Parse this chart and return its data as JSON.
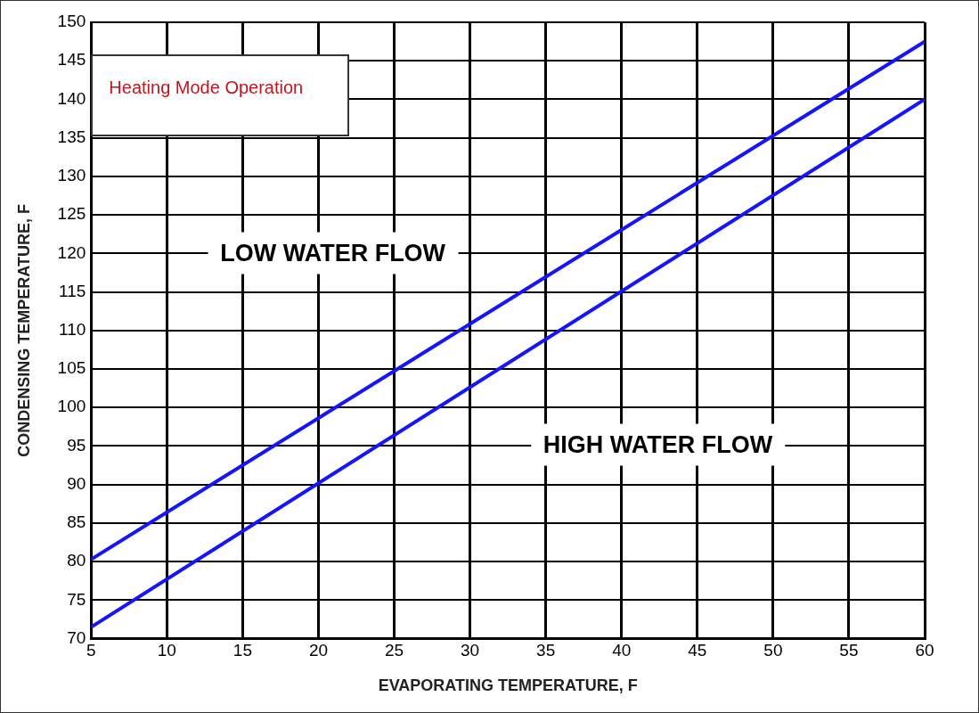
{
  "chart_data": {
    "type": "line",
    "xlabel": "EVAPORATING TEMPERATURE, F",
    "ylabel": "CONDENSING TEMPERATURE, F",
    "x": [
      5,
      60
    ],
    "series": [
      {
        "color": "#1414ff",
        "values": [
          80.3,
          147.5
        ]
      },
      {
        "color": "#1414ff",
        "values": [
          71.5,
          140
        ]
      }
    ],
    "xlim": [
      5,
      60
    ],
    "xticks": [
      5,
      10,
      15,
      20,
      25,
      30,
      35,
      40,
      45,
      50,
      55,
      60
    ],
    "ylim": [
      70,
      150
    ],
    "yticks": [
      70,
      75,
      80,
      85,
      90,
      95,
      100,
      105,
      110,
      115,
      120,
      125,
      130,
      135,
      140,
      145,
      150
    ],
    "grid": true,
    "legend": false,
    "marker": "none",
    "line_style": "solid",
    "annotations": [
      "Heating Mode Operation",
      "LOW WATER FLOW",
      "HIGH WATER FLOW"
    ]
  }
}
